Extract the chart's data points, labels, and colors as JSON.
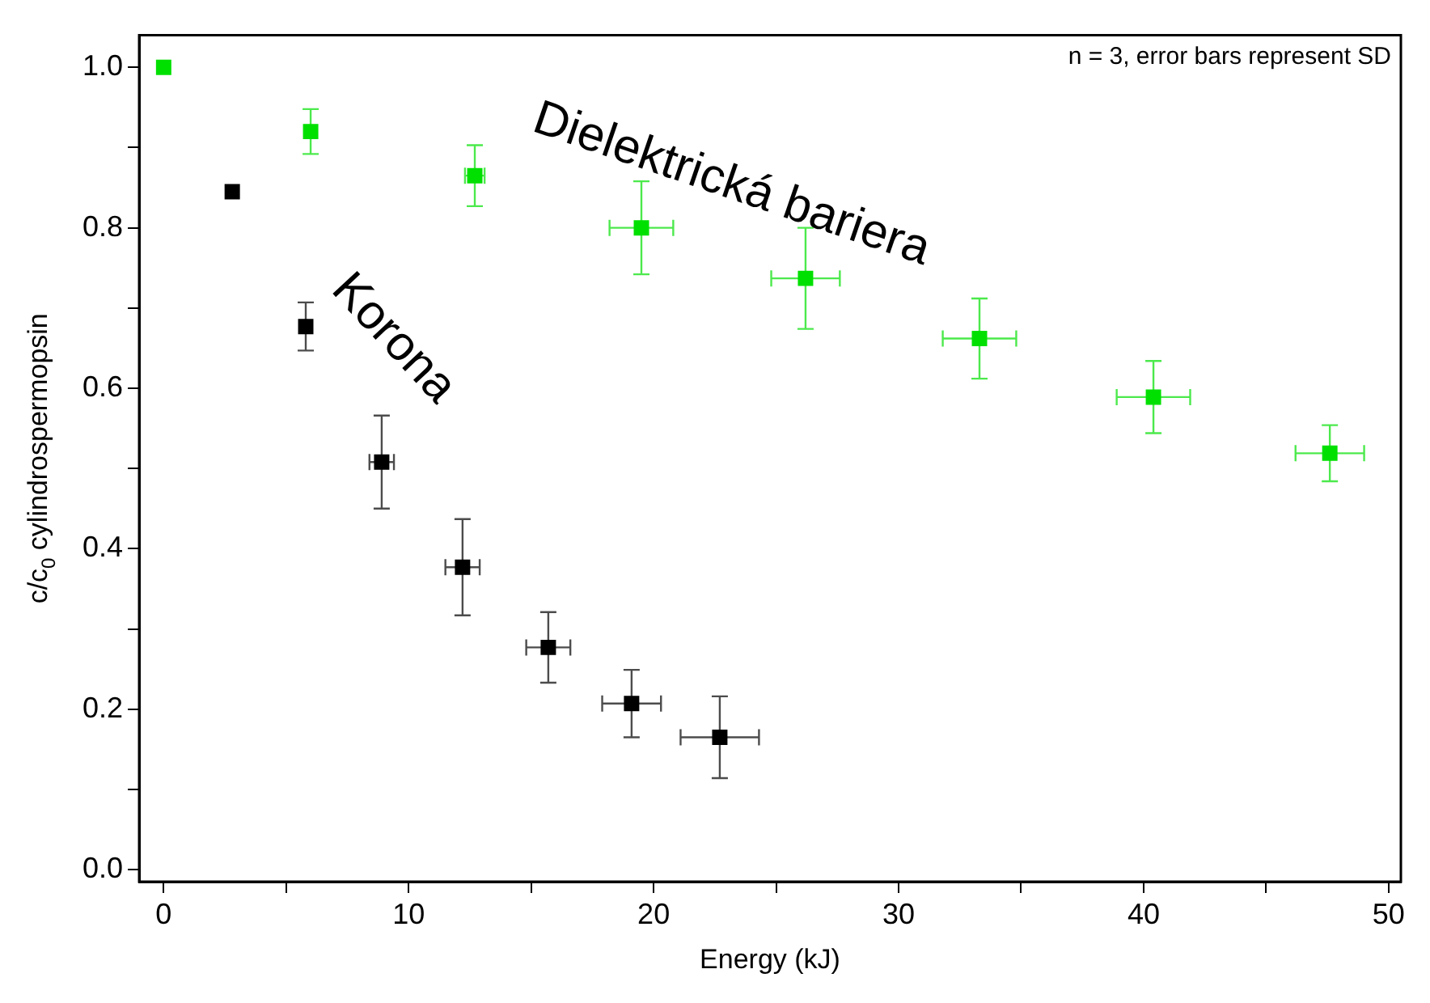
{
  "chart_data": {
    "type": "scatter",
    "xlabel": "Energy (kJ)",
    "ylabel": "c/c$_{0}$ cylindrospermopsin",
    "annotations": [
      "n = 3, error bars represent SD"
    ],
    "marker": "square",
    "grid": false,
    "xlim": [
      -1,
      50.5
    ],
    "ylim": [
      -0.015,
      1.04
    ],
    "xticks": [
      0,
      {
        "value": 5,
        "label": null
      },
      10,
      {
        "value": 15,
        "label": null
      },
      20,
      {
        "value": 25,
        "label": null
      },
      30,
      {
        "value": 35,
        "label": null
      },
      40,
      {
        "value": 45,
        "label": null
      },
      50
    ],
    "yticks": [
      {
        "value": 0,
        "label": "0.0"
      },
      {
        "value": 0.1,
        "label": null
      },
      {
        "value": 0.2,
        "label": "0.2"
      },
      {
        "value": 0.3,
        "label": null
      },
      {
        "value": 0.4,
        "label": "0.4"
      },
      {
        "value": 0.5,
        "label": null
      },
      {
        "value": 0.6,
        "label": "0.6"
      },
      {
        "value": 0.7,
        "label": null
      },
      {
        "value": 0.8,
        "label": "0.8"
      },
      {
        "value": 0.9,
        "label": null
      },
      {
        "value": 1.0,
        "label": "1.0"
      }
    ],
    "series": [
      {
        "name": "Korona",
        "color": "#000000",
        "x": [
          2.8,
          5.8,
          8.9,
          12.2,
          15.7,
          19.1,
          22.7
        ],
        "values": [
          0.845,
          0.677,
          0.508,
          0.377,
          0.277,
          0.207,
          0.165
        ],
        "errors": [
          null,
          0.03,
          0.058,
          0.06,
          0.044,
          0.042,
          0.051
        ],
        "xerrors": [
          null,
          null,
          0.5,
          0.7,
          0.9,
          1.2,
          1.6
        ]
      },
      {
        "name": "Dielektrická bariera",
        "color": "#00e000",
        "x": [
          0,
          6.0,
          12.7,
          19.5,
          26.2,
          33.3,
          40.4,
          47.6
        ],
        "values": [
          1.0,
          0.92,
          0.865,
          0.8,
          0.737,
          0.662,
          0.589,
          0.519
        ],
        "errors": [
          null,
          0.028,
          0.038,
          0.058,
          0.063,
          0.05,
          0.045,
          0.035
        ],
        "xerrors": [
          null,
          null,
          0.4,
          1.3,
          1.4,
          1.5,
          1.5,
          1.4
        ]
      }
    ]
  }
}
